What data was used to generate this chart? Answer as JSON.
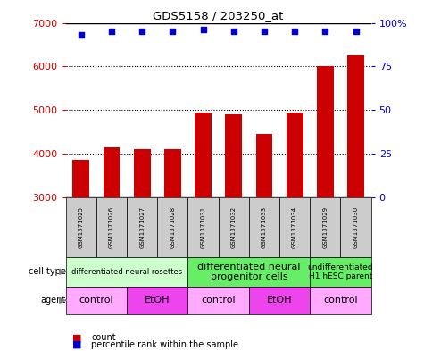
{
  "title": "GDS5158 / 203250_at",
  "samples": [
    "GSM1371025",
    "GSM1371026",
    "GSM1371027",
    "GSM1371028",
    "GSM1371031",
    "GSM1371032",
    "GSM1371033",
    "GSM1371034",
    "GSM1371029",
    "GSM1371030"
  ],
  "counts": [
    3850,
    4150,
    4100,
    4100,
    4950,
    4900,
    4450,
    4950,
    6000,
    6250
  ],
  "percentiles": [
    93,
    95,
    95,
    95,
    96,
    95,
    95,
    95,
    95,
    95
  ],
  "ylim_left": [
    3000,
    7000
  ],
  "ylim_right": [
    0,
    100
  ],
  "yticks_left": [
    3000,
    4000,
    5000,
    6000,
    7000
  ],
  "yticks_right": [
    0,
    25,
    50,
    75,
    100
  ],
  "bar_color": "#cc0000",
  "dot_color": "#0000cc",
  "cell_types": [
    {
      "label": "differentiated neural rosettes",
      "start": 0,
      "end": 4,
      "color": "#ccffcc",
      "fontsize": 6
    },
    {
      "label": "differentiated neural\nprogenitor cells",
      "start": 4,
      "end": 8,
      "color": "#66ee66",
      "fontsize": 8
    },
    {
      "label": "undifferentiated\nH1 hESC parent",
      "start": 8,
      "end": 10,
      "color": "#66ee66",
      "fontsize": 6.5
    }
  ],
  "agents": [
    {
      "label": "control",
      "start": 0,
      "end": 2,
      "color": "#ffaaff"
    },
    {
      "label": "EtOH",
      "start": 2,
      "end": 4,
      "color": "#ee44ee"
    },
    {
      "label": "control",
      "start": 4,
      "end": 6,
      "color": "#ffaaff"
    },
    {
      "label": "EtOH",
      "start": 6,
      "end": 8,
      "color": "#ee44ee"
    },
    {
      "label": "control",
      "start": 8,
      "end": 10,
      "color": "#ffaaff"
    }
  ],
  "left_tick_color": "#cc0000",
  "right_tick_color": "#0000cc",
  "bg_color": "#ffffff",
  "sample_col_color": "#cccccc"
}
